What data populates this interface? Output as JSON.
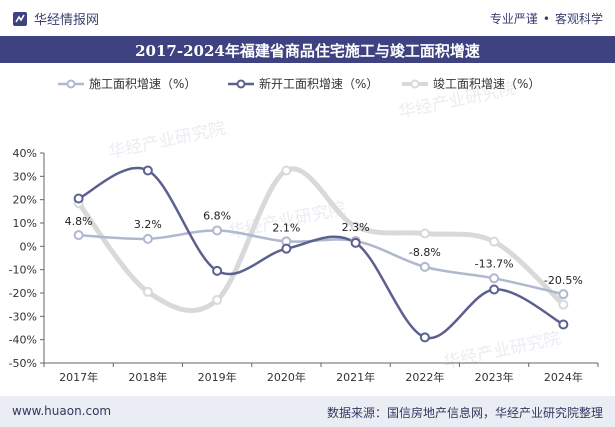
{
  "header": {
    "brand": "华经情报网",
    "tagline_left": "专业严谨",
    "tagline_sep": "•",
    "tagline_right": "客观科学"
  },
  "watermark": "华经产业研究院",
  "footer": {
    "url": "www.huaon.com",
    "source": "数据来源：国信房地产信息网，华经产业研究院整理"
  },
  "colors": {
    "title_bar": "#3e4280",
    "series_construction": "#b0b8cf",
    "series_new": "#5b6090",
    "series_completed": "#d9d9d9"
  },
  "chart_data": {
    "type": "line",
    "title": "2017-2024年福建省商品住宅施工与竣工面积增速",
    "categories": [
      "2017年",
      "2018年",
      "2019年",
      "2020年",
      "2021年",
      "2022年",
      "2023年",
      "2024年"
    ],
    "ylim": [
      -50,
      40
    ],
    "yticks": [
      "40%",
      "30%",
      "20%",
      "10%",
      "0%",
      "-10%",
      "-20%",
      "-30%",
      "-40%",
      "-50%"
    ],
    "legend_position": "top",
    "smooth": true,
    "series": [
      {
        "name": "施工面积增速（%）",
        "values": [
          4.8,
          3.2,
          6.8,
          2.1,
          2.3,
          -8.8,
          -13.7,
          -20.5
        ],
        "labels": [
          "4.8%",
          "3.2%",
          "6.8%",
          "2.1%",
          "2.3%",
          "-8.8%",
          "-13.7%",
          "-20.5%"
        ]
      },
      {
        "name": "新开工面积增速（%）",
        "values": [
          20.5,
          32.5,
          -10.5,
          -1.0,
          1.5,
          -39.0,
          -18.5,
          -33.5
        ]
      },
      {
        "name": "竣工面积增速（%）",
        "values": [
          18.5,
          -19.5,
          -23.0,
          32.5,
          8.5,
          5.5,
          2.0,
          -25.0
        ]
      }
    ]
  }
}
